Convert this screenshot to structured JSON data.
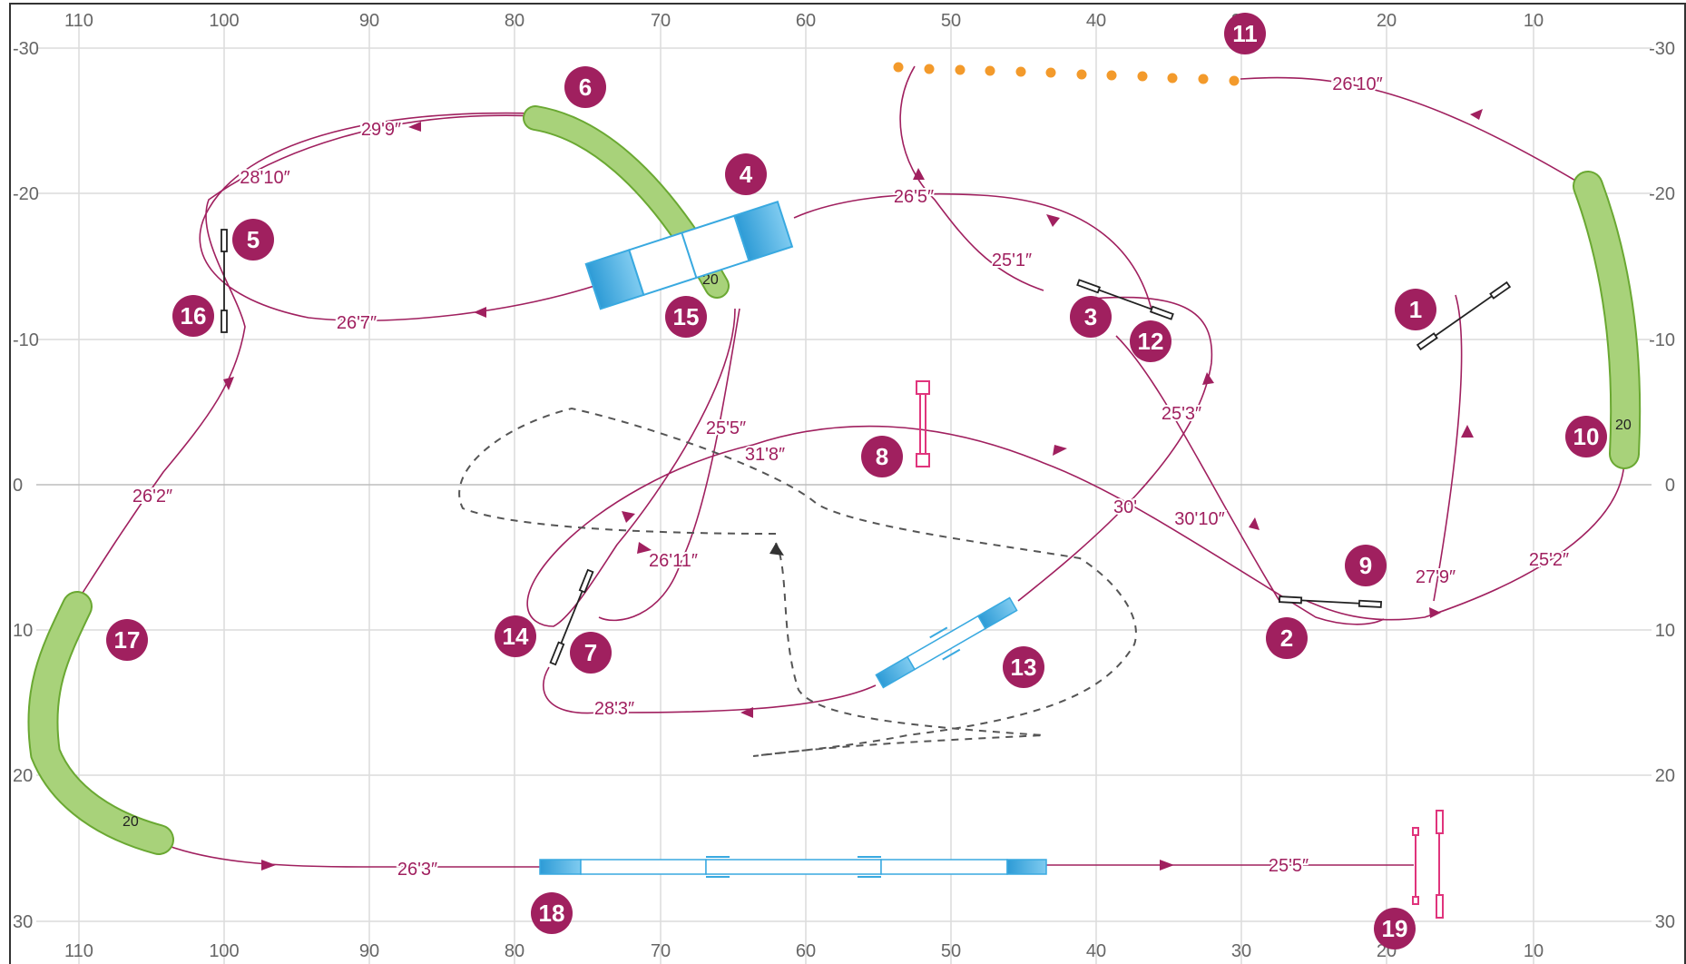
{
  "axes": {
    "top_ticks": [
      "110",
      "100",
      "90",
      "80",
      "70",
      "60",
      "50",
      "40",
      "30",
      "20",
      "10"
    ],
    "bottom_ticks": [
      "110",
      "100",
      "90",
      "80",
      "70",
      "60",
      "50",
      "40",
      "30",
      "20",
      "10"
    ],
    "left_ticks": [
      "-30",
      "-20",
      "-10",
      "0",
      "10",
      "20",
      "30"
    ],
    "right_ticks": [
      "-30",
      "-20",
      "-10",
      "0",
      "10",
      "20",
      "30"
    ]
  },
  "obstacle_numbers": [
    "1",
    "2",
    "3",
    "4",
    "5",
    "6",
    "7",
    "8",
    "9",
    "10",
    "11",
    "12",
    "13",
    "14",
    "15",
    "16",
    "17",
    "18",
    "19"
  ],
  "tunnel_labels": [
    "20",
    "20",
    "20"
  ],
  "distances": [
    "26'10″",
    "26'5″",
    "25'1″",
    "25'3″",
    "27'9″",
    "25'2″",
    "30'10″",
    "30'",
    "31'8″",
    "25'5″",
    "26'11″",
    "28'3″",
    "26'7″",
    "29'9″",
    "28'10″",
    "26'2″",
    "26'3″",
    "25'5″"
  ],
  "colors": {
    "path": "#a0205f",
    "number_badge": "#a0205f",
    "tunnel": "#a8d27a",
    "tunnel_edge": "#6aa832",
    "contact": "#39a9e0",
    "weave": "#f39a2b",
    "tire": "#e0347c",
    "grid": "#d9d9d9",
    "handler": "#555555"
  }
}
